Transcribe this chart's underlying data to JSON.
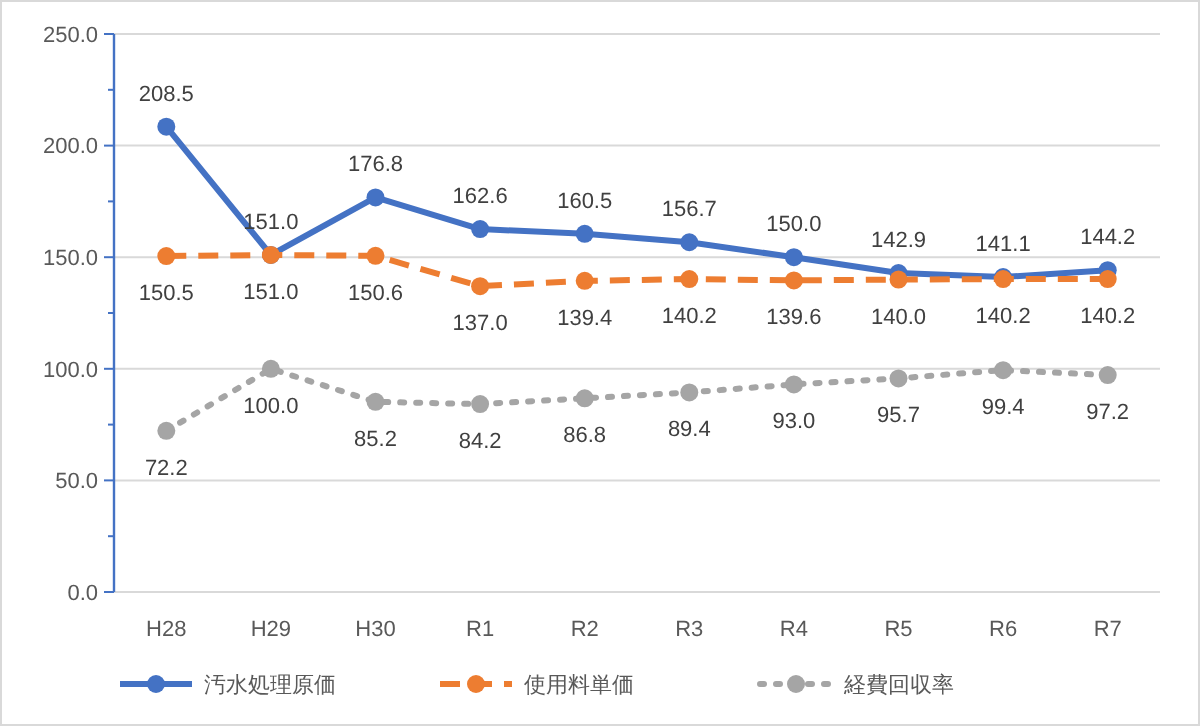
{
  "chart_data": {
    "type": "line",
    "categories": [
      "H28",
      "H29",
      "H30",
      "R1",
      "R2",
      "R3",
      "R4",
      "R5",
      "R6",
      "R7"
    ],
    "series": [
      {
        "name": "汚水処理原価",
        "color": "#4472c4",
        "line_style": "solid",
        "values": [
          208.5,
          151.0,
          176.8,
          162.6,
          160.5,
          156.7,
          150.0,
          142.9,
          141.1,
          144.2
        ],
        "value_labels": [
          "208.5",
          "151.0",
          "176.8",
          "162.6",
          "160.5",
          "156.7",
          "150.0",
          "142.9",
          "141.1",
          "144.2"
        ]
      },
      {
        "name": "使用料単価",
        "color": "#ed7d31",
        "line_style": "dashed",
        "values": [
          150.5,
          151.0,
          150.6,
          137.0,
          139.4,
          140.2,
          139.6,
          140.0,
          140.2,
          140.2
        ],
        "value_labels": [
          "150.5",
          "151.0",
          "150.6",
          "137.0",
          "139.4",
          "140.2",
          "139.6",
          "140.0",
          "140.2",
          "140.2"
        ]
      },
      {
        "name": "経費回収率",
        "color": "#a5a5a5",
        "line_style": "dotted",
        "values": [
          72.2,
          100.0,
          85.2,
          84.2,
          86.8,
          89.4,
          93.0,
          95.7,
          99.4,
          97.2
        ],
        "value_labels": [
          "72.2",
          "100.0",
          "85.2",
          "84.2",
          "86.8",
          "89.4",
          "93.0",
          "95.7",
          "99.4",
          "97.2"
        ]
      }
    ],
    "ylim": [
      0,
      250
    ],
    "yticks": [
      {
        "value": 0,
        "label": "0.0"
      },
      {
        "value": 50,
        "label": "50.0"
      },
      {
        "value": 100,
        "label": "100.0"
      },
      {
        "value": 150,
        "label": "150.0"
      },
      {
        "value": 200,
        "label": "200.0"
      },
      {
        "value": 250,
        "label": "250.0"
      }
    ],
    "grid": "y",
    "legend": "bottom",
    "marker": "circle"
  }
}
